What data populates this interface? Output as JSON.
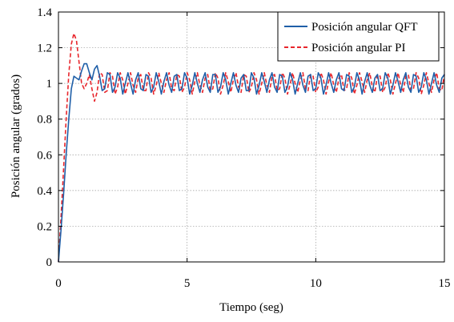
{
  "chart_data": {
    "type": "line",
    "title": "",
    "xlabel": "Tiempo (seg)",
    "ylabel": "Posición angular (grados)",
    "xlim": [
      0,
      15
    ],
    "ylim": [
      0,
      1.4
    ],
    "xticks": [
      0,
      5,
      10,
      15
    ],
    "xtick_labels": [
      "0",
      "5",
      "10",
      "15"
    ],
    "yticks": [
      0,
      0.2,
      0.4,
      0.6,
      0.8,
      1,
      1.2,
      1.4
    ],
    "ytick_labels": [
      "0",
      "0.2",
      "0.4",
      "0.6",
      "0.8",
      "1",
      "1.2",
      "1.4"
    ],
    "grid": true,
    "legend_position": "top-right",
    "series": [
      {
        "name": "Posición angular QFT",
        "color": "#1f5fa8",
        "line_style": "solid",
        "x": [
          0,
          0.1,
          0.2,
          0.3,
          0.4,
          0.5,
          0.6,
          0.7,
          0.8,
          0.9,
          1.0,
          1.1,
          1.2,
          1.3,
          1.4,
          1.5,
          1.6,
          1.7,
          1.8,
          1.9,
          2.0,
          2.1,
          2.2,
          2.3,
          2.4,
          2.5,
          2.6,
          2.7,
          2.8,
          2.9,
          3.0,
          3.1,
          3.2,
          3.3,
          3.4,
          3.5,
          3.6,
          3.7,
          3.8,
          3.9,
          4.0,
          4.1,
          4.2,
          4.3,
          4.4,
          4.5,
          4.6,
          4.7,
          4.8,
          4.9,
          5.0,
          5.1,
          5.2,
          5.3,
          5.4,
          5.5,
          5.6,
          5.7,
          5.8,
          5.9,
          6.0,
          6.1,
          6.2,
          6.3,
          6.4,
          6.5,
          6.6,
          6.7,
          6.8,
          6.9,
          7.0,
          7.1,
          7.2,
          7.3,
          7.4,
          7.5,
          7.6,
          7.7,
          7.8,
          7.9,
          8.0,
          8.1,
          8.2,
          8.3,
          8.4,
          8.5,
          8.6,
          8.7,
          8.8,
          8.9,
          9.0,
          9.1,
          9.2,
          9.3,
          9.4,
          9.5,
          9.6,
          9.7,
          9.8,
          9.9,
          10.0,
          10.1,
          10.2,
          10.3,
          10.4,
          10.5,
          10.6,
          10.7,
          10.8,
          10.9,
          11.0,
          11.1,
          11.2,
          11.3,
          11.4,
          11.5,
          11.6,
          11.7,
          11.8,
          11.9,
          12.0,
          12.1,
          12.2,
          12.3,
          12.4,
          12.5,
          12.6,
          12.7,
          12.8,
          12.9,
          13.0,
          13.1,
          13.2,
          13.3,
          13.4,
          13.5,
          13.6,
          13.7,
          13.8,
          13.9,
          14.0,
          14.1,
          14.2,
          14.3,
          14.4,
          14.5,
          14.6,
          14.7,
          14.8,
          14.9,
          15.0
        ],
        "y": [
          0.0,
          0.18,
          0.38,
          0.6,
          0.8,
          0.97,
          1.04,
          1.03,
          1.02,
          1.07,
          1.11,
          1.11,
          1.06,
          1.02,
          1.08,
          1.1,
          1.04,
          0.96,
          0.97,
          1.06,
          1.05,
          0.95,
          0.98,
          1.06,
          1.03,
          0.94,
          1.0,
          1.06,
          1.0,
          0.94,
          1.02,
          1.06,
          0.97,
          0.96,
          1.05,
          1.04,
          0.95,
          0.98,
          1.06,
          1.01,
          0.94,
          1.01,
          1.06,
          0.99,
          0.95,
          1.04,
          1.05,
          0.96,
          0.97,
          1.06,
          1.03,
          0.94,
          0.99,
          1.06,
          1.0,
          0.95,
          1.02,
          1.06,
          0.98,
          0.95,
          1.05,
          1.05,
          0.95,
          0.98,
          1.06,
          1.02,
          0.94,
          1.0,
          1.06,
          0.99,
          0.95,
          1.03,
          1.05,
          0.96,
          0.96,
          1.06,
          1.03,
          0.94,
          0.99,
          1.06,
          1.01,
          0.95,
          1.02,
          1.06,
          0.98,
          0.95,
          1.05,
          1.04,
          0.95,
          0.98,
          1.06,
          1.02,
          0.94,
          1.0,
          1.06,
          0.99,
          0.95,
          1.04,
          1.05,
          0.96,
          0.97,
          1.06,
          1.03,
          0.94,
          0.99,
          1.06,
          1.0,
          0.95,
          1.02,
          1.06,
          0.97,
          0.96,
          1.05,
          1.04,
          0.95,
          0.98,
          1.06,
          1.02,
          0.94,
          1.01,
          1.06,
          0.99,
          0.95,
          1.03,
          1.05,
          0.96,
          0.97,
          1.06,
          1.03,
          0.94,
          0.99,
          1.06,
          1.01,
          0.95,
          1.02,
          1.06,
          0.98,
          0.95,
          1.05,
          1.04,
          0.95,
          0.98,
          1.06,
          1.02,
          0.94,
          1.0,
          1.06,
          0.99,
          0.95,
          1.03,
          1.05
        ]
      },
      {
        "name": "Posición angular PI",
        "color": "#e8262c",
        "line_style": "dashed",
        "x": [
          0,
          0.1,
          0.2,
          0.3,
          0.4,
          0.5,
          0.6,
          0.7,
          0.8,
          0.9,
          1.0,
          1.1,
          1.2,
          1.3,
          1.4,
          1.5,
          1.6,
          1.7,
          1.8,
          1.9,
          2.0,
          2.1,
          2.2,
          2.3,
          2.4,
          2.5,
          2.6,
          2.7,
          2.8,
          2.9,
          3.0,
          3.1,
          3.2,
          3.3,
          3.4,
          3.5,
          3.6,
          3.7,
          3.8,
          3.9,
          4.0,
          4.1,
          4.2,
          4.3,
          4.4,
          4.5,
          4.6,
          4.7,
          4.8,
          4.9,
          5.0,
          5.1,
          5.2,
          5.3,
          5.4,
          5.5,
          5.6,
          5.7,
          5.8,
          5.9,
          6.0,
          6.1,
          6.2,
          6.3,
          6.4,
          6.5,
          6.6,
          6.7,
          6.8,
          6.9,
          7.0,
          7.1,
          7.2,
          7.3,
          7.4,
          7.5,
          7.6,
          7.7,
          7.8,
          7.9,
          8.0,
          8.1,
          8.2,
          8.3,
          8.4,
          8.5,
          8.6,
          8.7,
          8.8,
          8.9,
          9.0,
          9.1,
          9.2,
          9.3,
          9.4,
          9.5,
          9.6,
          9.7,
          9.8,
          9.9,
          10.0,
          10.1,
          10.2,
          10.3,
          10.4,
          10.5,
          10.6,
          10.7,
          10.8,
          10.9,
          11.0,
          11.1,
          11.2,
          11.3,
          11.4,
          11.5,
          11.6,
          11.7,
          11.8,
          11.9,
          12.0,
          12.1,
          12.2,
          12.3,
          12.4,
          12.5,
          12.6,
          12.7,
          12.8,
          12.9,
          13.0,
          13.1,
          13.2,
          13.3,
          13.4,
          13.5,
          13.6,
          13.7,
          13.8,
          13.9,
          14.0,
          14.1,
          14.2,
          14.3,
          14.4,
          14.5,
          14.6,
          14.7,
          14.8,
          14.9,
          15.0
        ],
        "y": [
          0.0,
          0.25,
          0.52,
          0.8,
          1.05,
          1.22,
          1.28,
          1.24,
          1.12,
          1.0,
          0.97,
          1.0,
          1.05,
          0.97,
          0.9,
          0.95,
          1.06,
          1.05,
          0.95,
          0.96,
          1.06,
          1.04,
          0.94,
          0.98,
          1.06,
          1.02,
          0.94,
          1.0,
          1.06,
          0.99,
          0.95,
          1.03,
          1.05,
          0.96,
          0.96,
          1.06,
          1.03,
          0.94,
          0.99,
          1.06,
          1.0,
          0.95,
          1.02,
          1.06,
          0.97,
          0.96,
          1.05,
          1.04,
          0.95,
          0.98,
          1.06,
          1.02,
          0.94,
          1.01,
          1.06,
          0.99,
          0.95,
          1.03,
          1.05,
          0.96,
          0.97,
          1.06,
          1.03,
          0.94,
          0.99,
          1.06,
          1.01,
          0.95,
          1.02,
          1.06,
          0.98,
          0.95,
          1.05,
          1.04,
          0.95,
          0.98,
          1.06,
          1.02,
          0.94,
          1.0,
          1.06,
          0.99,
          0.95,
          1.04,
          1.05,
          0.96,
          0.97,
          1.06,
          1.03,
          0.94,
          0.99,
          1.06,
          1.0,
          0.95,
          1.02,
          1.06,
          0.97,
          0.96,
          1.05,
          1.04,
          0.95,
          0.98,
          1.06,
          1.02,
          0.94,
          1.01,
          1.06,
          0.99,
          0.95,
          1.03,
          1.05,
          0.96,
          0.97,
          1.06,
          1.03,
          0.94,
          0.99,
          1.06,
          1.01,
          0.95,
          1.02,
          1.06,
          0.98,
          0.95,
          1.05,
          1.04,
          0.95,
          0.98,
          1.06,
          1.02,
          0.94,
          1.0,
          1.06,
          0.99,
          0.95,
          1.04,
          1.05,
          0.96,
          0.97,
          1.06,
          1.03,
          0.94,
          0.99,
          1.06,
          1.0,
          0.95,
          1.02,
          1.06,
          0.97,
          0.96,
          1.05
        ]
      }
    ]
  }
}
